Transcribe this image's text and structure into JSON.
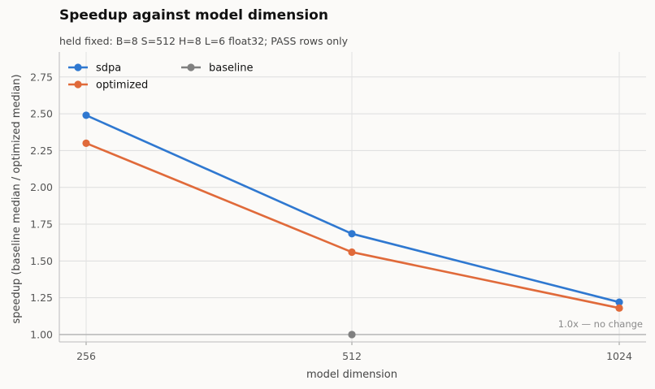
{
  "chart_data": {
    "type": "line",
    "title": "Speedup against model dimension",
    "subtitle": "held fixed: B=8 S=512 H=8 L=6 float32; PASS rows only",
    "xlabel": "model dimension",
    "ylabel": "speedup (baseline median / optimized median)",
    "categories": [
      "256",
      "512",
      "1024"
    ],
    "ylim": [
      0.95,
      2.92
    ],
    "yticks": [
      1.0,
      1.25,
      1.5,
      1.75,
      2.0,
      2.25,
      2.5,
      2.75
    ],
    "ytick_labels": [
      "1.00",
      "1.25",
      "1.50",
      "1.75",
      "2.00",
      "2.25",
      "2.50",
      "2.75"
    ],
    "grid": true,
    "legend_position": "top-left",
    "series": [
      {
        "name": "sdpa",
        "color": "#2f78d0",
        "values": [
          2.49,
          1.685,
          1.22
        ]
      },
      {
        "name": "optimized",
        "color": "#e06a3a",
        "values": [
          2.3,
          1.56,
          1.18
        ]
      },
      {
        "name": "baseline",
        "color": "#808080",
        "values": [
          null,
          1.0,
          null
        ]
      }
    ],
    "reference_line": {
      "value": 1.0,
      "label": "1.0x — no change",
      "color": "#b0b0b0"
    }
  }
}
